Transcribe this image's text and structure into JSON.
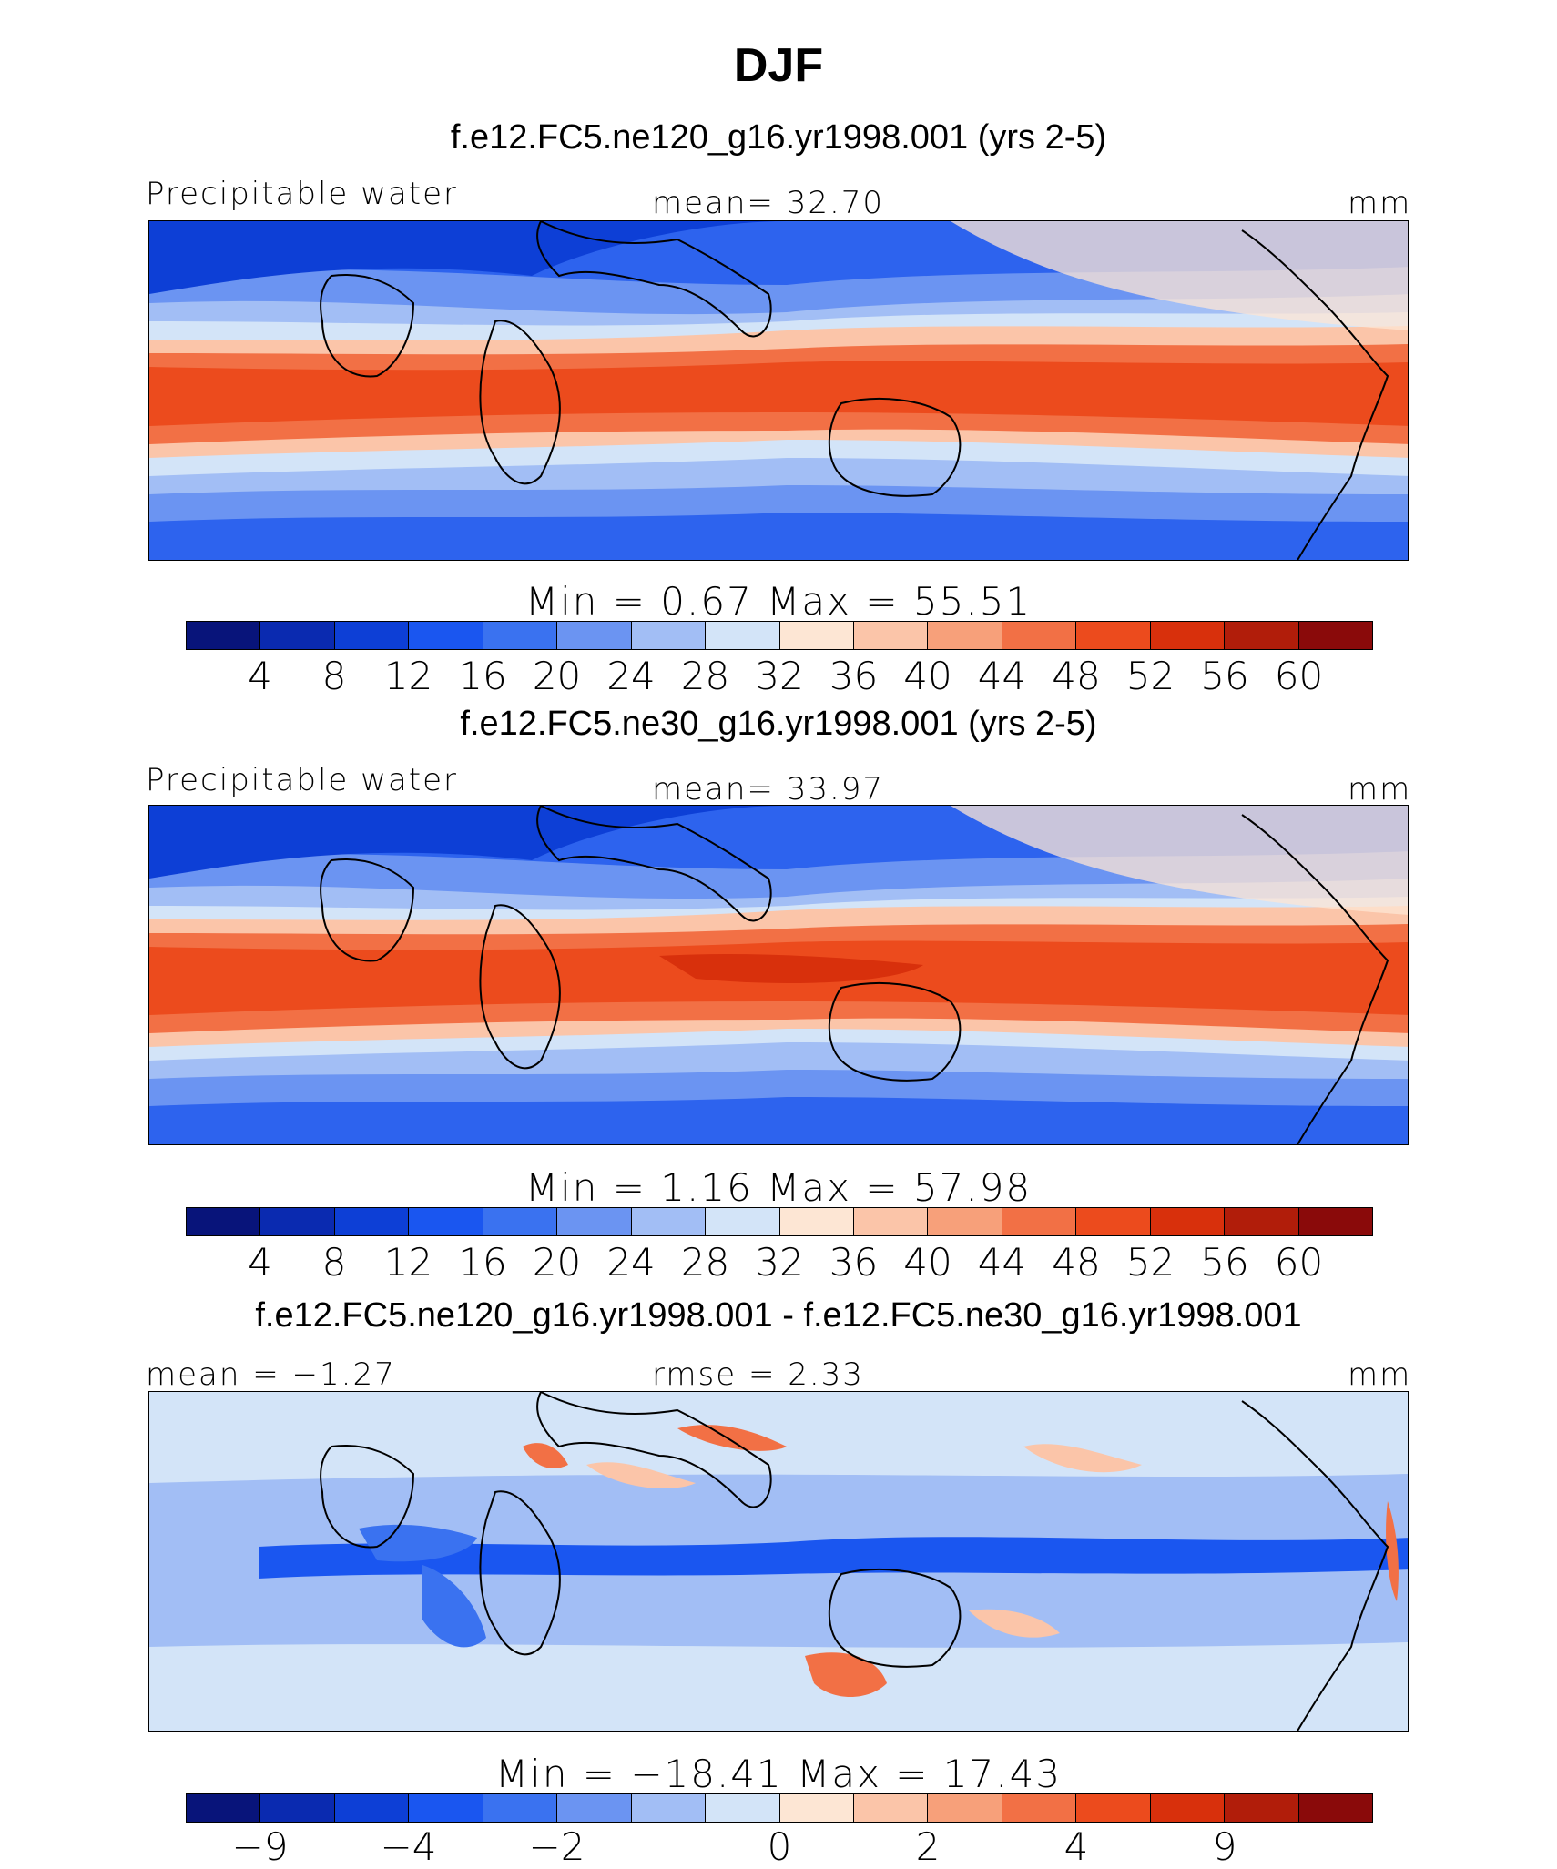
{
  "title": "DJF",
  "colors": {
    "diverging_16": [
      "#08147a",
      "#0a2ab0",
      "#0d3fd6",
      "#1a56f0",
      "#3a72f0",
      "#6b94f2",
      "#a2bef5",
      "#d3e4f8",
      "#fde6d4",
      "#fbc5a9",
      "#f7a07a",
      "#f27045",
      "#ec4b1d",
      "#d8300c",
      "#b11d0a",
      "#8a0a0a"
    ],
    "coast": "#000000"
  },
  "panels": [
    {
      "subtitle": "f.e12.FC5.ne120_g16.yr1998.001 (yrs 2-5)",
      "left_label": "Precipitable water",
      "center_label": "mean=   32.70",
      "right_label": "mm",
      "minmax": "Min  =     0.67  Max  =    55.51",
      "ticks": [
        "4",
        "8",
        "12",
        "16",
        "20",
        "24",
        "28",
        "32",
        "36",
        "40",
        "44",
        "48",
        "52",
        "56",
        "60"
      ]
    },
    {
      "subtitle": "f.e12.FC5.ne30_g16.yr1998.001 (yrs 2-5)",
      "left_label": "Precipitable water",
      "center_label": "mean=   33.97",
      "right_label": "mm",
      "minmax": "Min  =     1.16  Max  =    57.98",
      "ticks": [
        "4",
        "8",
        "12",
        "16",
        "20",
        "24",
        "28",
        "32",
        "36",
        "40",
        "44",
        "48",
        "52",
        "56",
        "60"
      ]
    },
    {
      "subtitle": "f.e12.FC5.ne120_g16.yr1998.001 - f.e12.FC5.ne30_g16.yr1998.001",
      "left_label": "mean =   −1.27",
      "center_label": "rmse =    2.33",
      "right_label": "mm",
      "minmax": "Min  = −18.41  Max  =    17.43",
      "ticks": [
        "−9",
        "−4",
        "−2",
        "0",
        "2",
        "4",
        "9"
      ]
    }
  ]
}
